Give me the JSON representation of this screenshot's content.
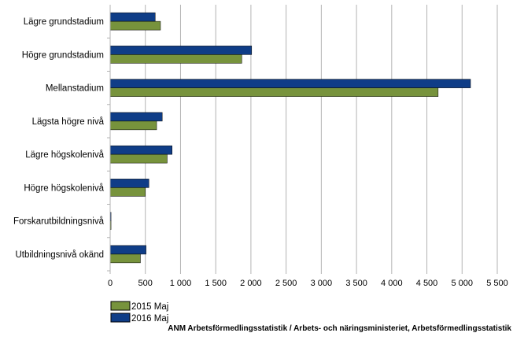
{
  "chart_data": {
    "type": "bar",
    "orientation": "horizontal",
    "categories": [
      "Lägre grundstadium",
      "Högre grundstadium",
      "Mellanstadium",
      "Lägsta högre nivå",
      "Lägre högskolenivå",
      "Högre högskolenivå",
      "Forskarutbildningsnivå",
      "Utbildningsnivå okänd"
    ],
    "series": [
      {
        "name": "2015 Maj",
        "color": "#77933c",
        "values": [
          715,
          1870,
          4660,
          660,
          810,
          500,
          12,
          430
        ]
      },
      {
        "name": "2016 Maj",
        "color": "#0f3d87",
        "values": [
          640,
          2010,
          5120,
          740,
          880,
          550,
          12,
          510
        ]
      }
    ],
    "xlim": [
      0,
      5500
    ],
    "x_ticks": [
      0,
      500,
      1000,
      1500,
      2000,
      2500,
      3000,
      3500,
      4000,
      4500,
      5000,
      5500
    ],
    "x_tick_labels": [
      "0",
      "500",
      "1 000",
      "1 500",
      "2 000",
      "2 500",
      "3 000",
      "3 500",
      "4 000",
      "4 500",
      "5 000",
      "5 500"
    ],
    "grid": "vertical",
    "legend_position": "bottom-left",
    "title": "",
    "xlabel": "",
    "ylabel": ""
  },
  "footer": {
    "source_note": "ANM Arbetsförmedlingsstatistik / Arbets- och näringsministeriet, Arbetsförmedlingsstatistik"
  }
}
